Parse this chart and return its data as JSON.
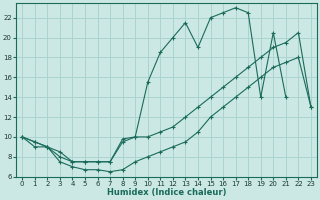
{
  "xlabel": "Humidex (Indice chaleur)",
  "background_color": "#cce8e5",
  "grid_color": "#aad4d0",
  "line_color": "#1a6b5a",
  "xlim": [
    -0.5,
    23.5
  ],
  "ylim": [
    6,
    23.5
  ],
  "xticks": [
    0,
    1,
    2,
    3,
    4,
    5,
    6,
    7,
    8,
    9,
    10,
    11,
    12,
    13,
    14,
    15,
    16,
    17,
    18,
    19,
    20,
    21,
    22,
    23
  ],
  "yticks": [
    6,
    8,
    10,
    12,
    14,
    16,
    18,
    20,
    22
  ],
  "line1_x": [
    0,
    1,
    2,
    3,
    4,
    5,
    6,
    7,
    8,
    9,
    10,
    11,
    12,
    13,
    14,
    15,
    16,
    17,
    18,
    19,
    20,
    21,
    22,
    23
  ],
  "line1_y": [
    10,
    9.5,
    9.0,
    8.5,
    7.5,
    7.5,
    7.5,
    7.5,
    9.5,
    10,
    10,
    10.5,
    11,
    12,
    13,
    14,
    15,
    16,
    17,
    18,
    19,
    19.5,
    20.5,
    13
  ],
  "line2_x": [
    0,
    1,
    2,
    3,
    4,
    5,
    6,
    7,
    8,
    9,
    10,
    11,
    12,
    13,
    14,
    15,
    16,
    17,
    18,
    19,
    20,
    21,
    22,
    23
  ],
  "line2_y": [
    10,
    9.5,
    9.0,
    8.0,
    7.5,
    7.5,
    7.5,
    7.5,
    9.8,
    10,
    15.5,
    18.5,
    20,
    21.5,
    19,
    22,
    22.5,
    23,
    22.5,
    14,
    20.5,
    14,
    null,
    null
  ],
  "line3_x": [
    0,
    1,
    2,
    3,
    4,
    5,
    6,
    7,
    8,
    9,
    10,
    11,
    12,
    13,
    14,
    15,
    16,
    17,
    18,
    19,
    20,
    21,
    22,
    23
  ],
  "line3_y": [
    10,
    9,
    9.0,
    7.5,
    7.0,
    6.7,
    6.7,
    6.5,
    6.7,
    7.5,
    8.0,
    8.5,
    9.0,
    9.5,
    10.5,
    12,
    13,
    14,
    15,
    16,
    17,
    17.5,
    18,
    13
  ],
  "marker": "+",
  "markersize": 3.5,
  "linewidth": 0.8,
  "tick_fontsize": 5,
  "xlabel_fontsize": 6
}
